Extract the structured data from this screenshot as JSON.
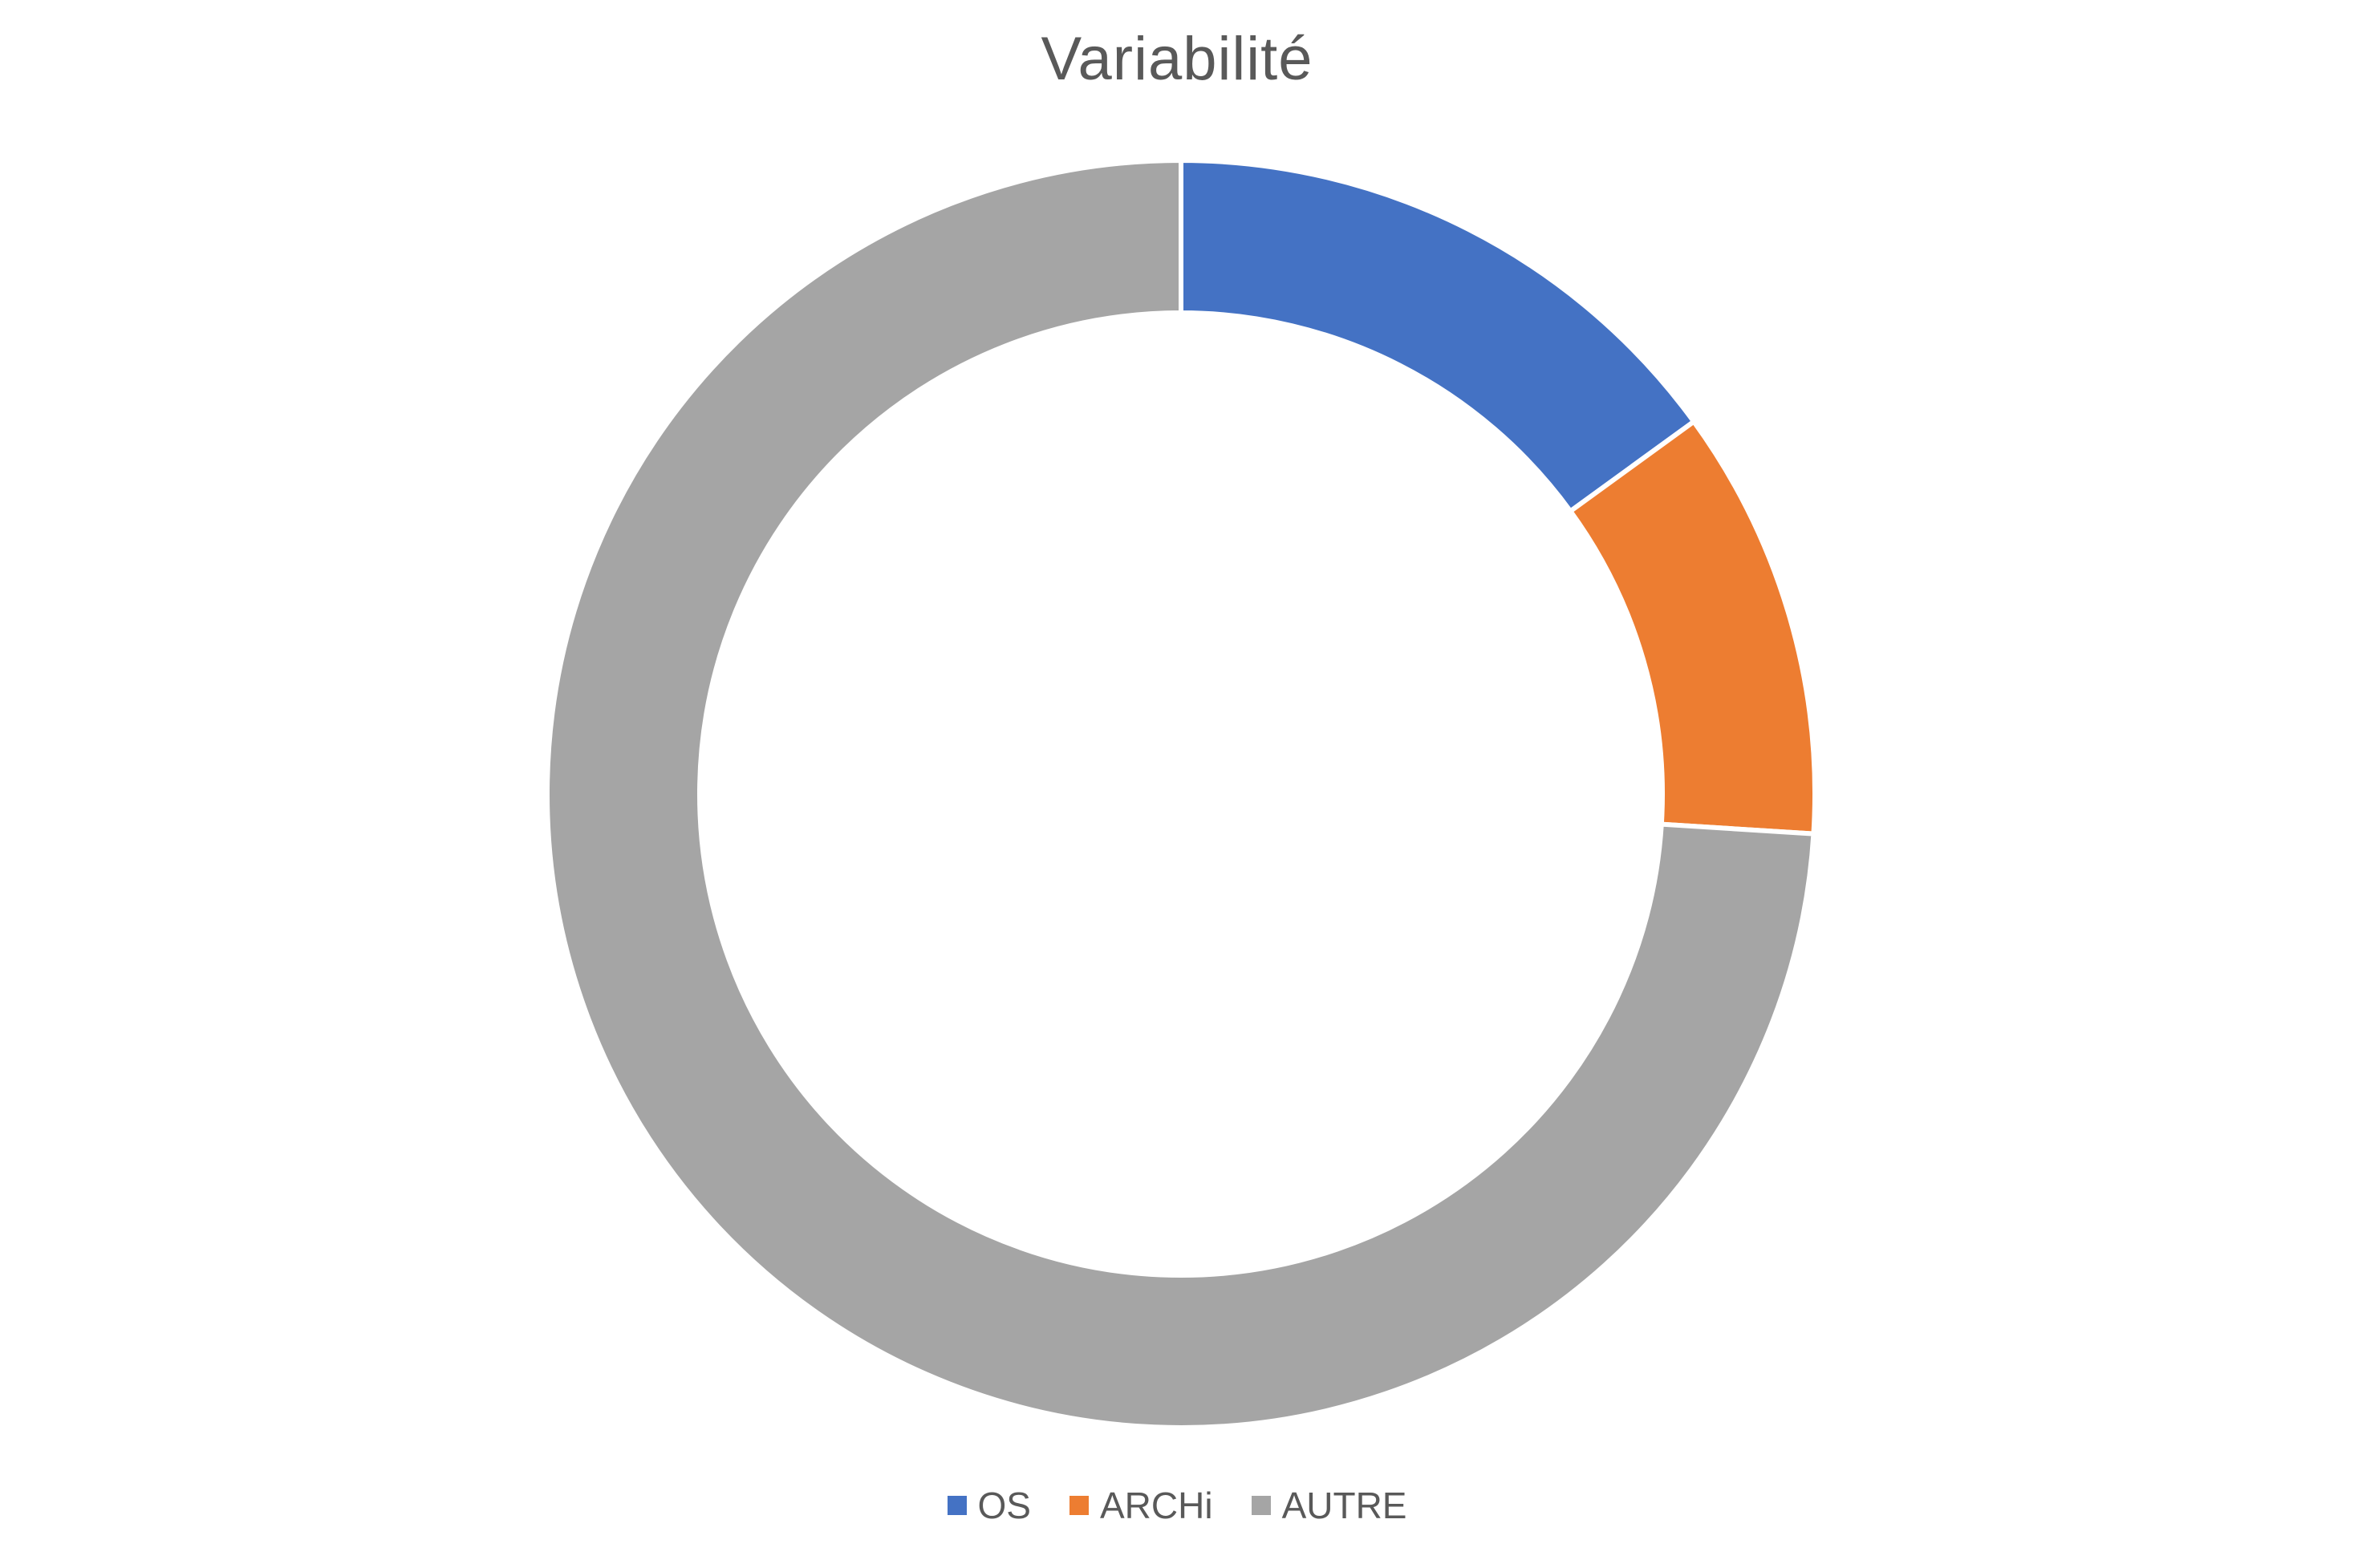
{
  "chart_data": {
    "type": "pie",
    "subtype": "donut",
    "title": "Variabilité",
    "categories": [
      "OS",
      "ARCHi",
      "AUTRE"
    ],
    "values": [
      15,
      11,
      74
    ],
    "colors": [
      "#4472C4",
      "#ED7D31",
      "#A5A5A5"
    ],
    "legend_position": "bottom",
    "start_angle": "top",
    "direction": "clockwise"
  }
}
